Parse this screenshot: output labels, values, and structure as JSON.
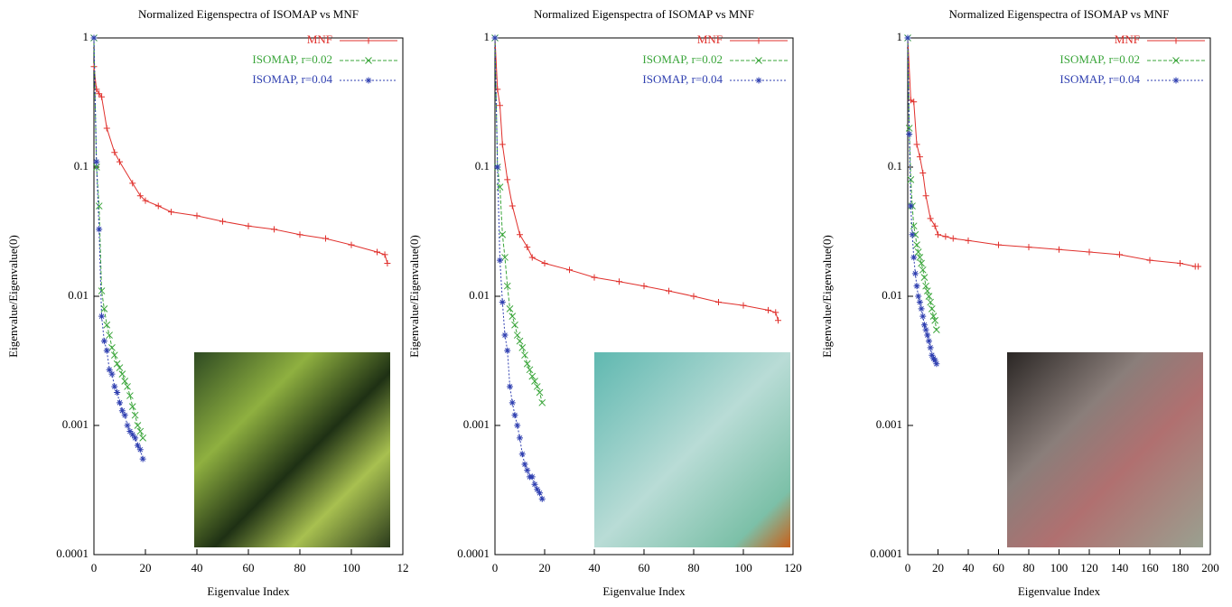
{
  "chart_data": [
    {
      "type": "line",
      "title": "Normalized Eigenspectra of ISOMAP vs MNF",
      "xlabel": "Eigenvalue Index",
      "ylabel": "Eigenvalue/Eigenvalue(0)",
      "ylog": true,
      "legend": "upper right",
      "xlim": [
        0,
        120
      ],
      "xticks": [
        0,
        20,
        40,
        60,
        80,
        100,
        {
          "value": 120,
          "label": "12"
        }
      ],
      "ylim": [
        0.0001,
        1
      ],
      "yticks": [
        1,
        0.1,
        0.01,
        0.001,
        0.0001
      ],
      "series": [
        {
          "name": "MNF",
          "color": "#e0302c",
          "marker": "+",
          "x": [
            0,
            1,
            2,
            3,
            5,
            8,
            10,
            15,
            18,
            20,
            25,
            30,
            40,
            50,
            60,
            70,
            80,
            90,
            100,
            110,
            113,
            114
          ],
          "values": [
            0.6,
            0.4,
            0.37,
            0.35,
            0.2,
            0.13,
            0.11,
            0.075,
            0.06,
            0.055,
            0.05,
            0.045,
            0.042,
            0.038,
            0.035,
            0.033,
            0.03,
            0.028,
            0.025,
            0.022,
            0.021,
            0.018
          ]
        },
        {
          "name": "ISOMAP, r=0.02",
          "color": "#3aa53a",
          "marker": "x",
          "x": [
            0,
            1,
            2,
            3,
            4,
            5,
            6,
            7,
            8,
            9,
            10,
            11,
            12,
            13,
            14,
            15,
            16,
            17,
            18,
            19
          ],
          "values": [
            1,
            0.1,
            0.05,
            0.011,
            0.008,
            0.006,
            0.005,
            0.004,
            0.0035,
            0.003,
            0.0028,
            0.0025,
            0.0022,
            0.002,
            0.0017,
            0.0014,
            0.0012,
            0.001,
            0.0009,
            0.0008
          ]
        },
        {
          "name": "ISOMAP, r=0.04",
          "color": "#2f3fb0",
          "marker": "*",
          "x": [
            0,
            1,
            2,
            3,
            4,
            5,
            6,
            7,
            8,
            9,
            10,
            11,
            12,
            13,
            14,
            15,
            16,
            17,
            18,
            19
          ],
          "values": [
            1,
            0.11,
            0.033,
            0.007,
            0.0045,
            0.0038,
            0.0027,
            0.0025,
            0.002,
            0.0018,
            0.0015,
            0.0013,
            0.0012,
            0.001,
            0.0009,
            0.00085,
            0.0008,
            0.0007,
            0.00065,
            0.00055
          ]
        }
      ]
    },
    {
      "type": "line",
      "title": "Normalized Eigenspectra of ISOMAP vs MNF",
      "xlabel": "Eigenvalue Index",
      "ylabel": "Eigenvalue/Eigenvalue(0)",
      "ylog": true,
      "legend": "upper right",
      "xlim": [
        0,
        120
      ],
      "xticks": [
        0,
        20,
        40,
        60,
        80,
        100,
        120
      ],
      "ylim": [
        0.0001,
        1
      ],
      "yticks": [
        1,
        0.1,
        0.01,
        0.001,
        0.0001
      ],
      "series": [
        {
          "name": "MNF",
          "color": "#e0302c",
          "marker": "+",
          "x": [
            0,
            1,
            2,
            3,
            5,
            7,
            10,
            13,
            15,
            20,
            30,
            40,
            50,
            60,
            70,
            80,
            90,
            100,
            110,
            113,
            114
          ],
          "values": [
            1,
            0.4,
            0.3,
            0.15,
            0.08,
            0.05,
            0.03,
            0.024,
            0.02,
            0.018,
            0.016,
            0.014,
            0.013,
            0.012,
            0.011,
            0.01,
            0.009,
            0.0085,
            0.0078,
            0.0075,
            0.0065
          ]
        },
        {
          "name": "ISOMAP, r=0.02",
          "color": "#3aa53a",
          "marker": "x",
          "x": [
            0,
            1,
            2,
            3,
            4,
            5,
            6,
            7,
            8,
            9,
            10,
            11,
            12,
            13,
            14,
            15,
            16,
            17,
            18,
            19
          ],
          "values": [
            1,
            0.1,
            0.07,
            0.03,
            0.02,
            0.012,
            0.008,
            0.007,
            0.006,
            0.005,
            0.0045,
            0.004,
            0.0035,
            0.003,
            0.0027,
            0.0024,
            0.0022,
            0.002,
            0.0018,
            0.0015
          ]
        },
        {
          "name": "ISOMAP, r=0.04",
          "color": "#2f3fb0",
          "marker": "*",
          "x": [
            0,
            1,
            2,
            3,
            4,
            5,
            6,
            7,
            8,
            9,
            10,
            11,
            12,
            13,
            14,
            15,
            16,
            17,
            18,
            19
          ],
          "values": [
            1,
            0.1,
            0.019,
            0.009,
            0.005,
            0.0038,
            0.002,
            0.0015,
            0.0012,
            0.001,
            0.0008,
            0.0006,
            0.0005,
            0.00045,
            0.0004,
            0.0004,
            0.00035,
            0.00032,
            0.0003,
            0.00027
          ]
        }
      ]
    },
    {
      "type": "line",
      "title": "Normalized Eigenspectra of ISOMAP vs MNF",
      "xlabel": "Eigenvalue Index",
      "ylabel": "Eigenvalue/Eigenvalue(0)",
      "ylog": true,
      "legend": "upper right",
      "xlim": [
        0,
        200
      ],
      "xticks": [
        0,
        20,
        40,
        60,
        80,
        100,
        120,
        140,
        160,
        180,
        200
      ],
      "ylim": [
        0.0001,
        1
      ],
      "yticks": [
        1,
        0.1,
        0.01,
        0.001,
        0.0001
      ],
      "series": [
        {
          "name": "MNF",
          "color": "#e0302c",
          "marker": "+",
          "x": [
            0,
            2,
            4,
            6,
            8,
            10,
            12,
            15,
            18,
            20,
            25,
            30,
            40,
            60,
            80,
            100,
            120,
            140,
            160,
            180,
            190,
            192
          ],
          "values": [
            1,
            0.33,
            0.32,
            0.15,
            0.12,
            0.09,
            0.06,
            0.04,
            0.035,
            0.03,
            0.029,
            0.028,
            0.027,
            0.025,
            0.024,
            0.023,
            0.022,
            0.021,
            0.019,
            0.018,
            0.017,
            0.017
          ]
        },
        {
          "name": "ISOMAP, r=0.02",
          "color": "#3aa53a",
          "marker": "x",
          "x": [
            0,
            1,
            2,
            3,
            4,
            5,
            6,
            7,
            8,
            9,
            10,
            11,
            12,
            13,
            14,
            15,
            16,
            17,
            18,
            19
          ],
          "values": [
            1,
            0.2,
            0.08,
            0.05,
            0.035,
            0.03,
            0.025,
            0.022,
            0.02,
            0.018,
            0.016,
            0.014,
            0.012,
            0.011,
            0.01,
            0.009,
            0.008,
            0.007,
            0.0065,
            0.0055
          ]
        },
        {
          "name": "ISOMAP, r=0.04",
          "color": "#2f3fb0",
          "marker": "*",
          "x": [
            0,
            1,
            2,
            3,
            4,
            5,
            6,
            7,
            8,
            9,
            10,
            11,
            12,
            13,
            14,
            15,
            16,
            17,
            18,
            19
          ],
          "values": [
            1,
            0.18,
            0.05,
            0.03,
            0.02,
            0.015,
            0.012,
            0.01,
            0.009,
            0.008,
            0.007,
            0.006,
            0.0055,
            0.005,
            0.0045,
            0.004,
            0.0035,
            0.0033,
            0.0032,
            0.003
          ]
        }
      ]
    }
  ]
}
